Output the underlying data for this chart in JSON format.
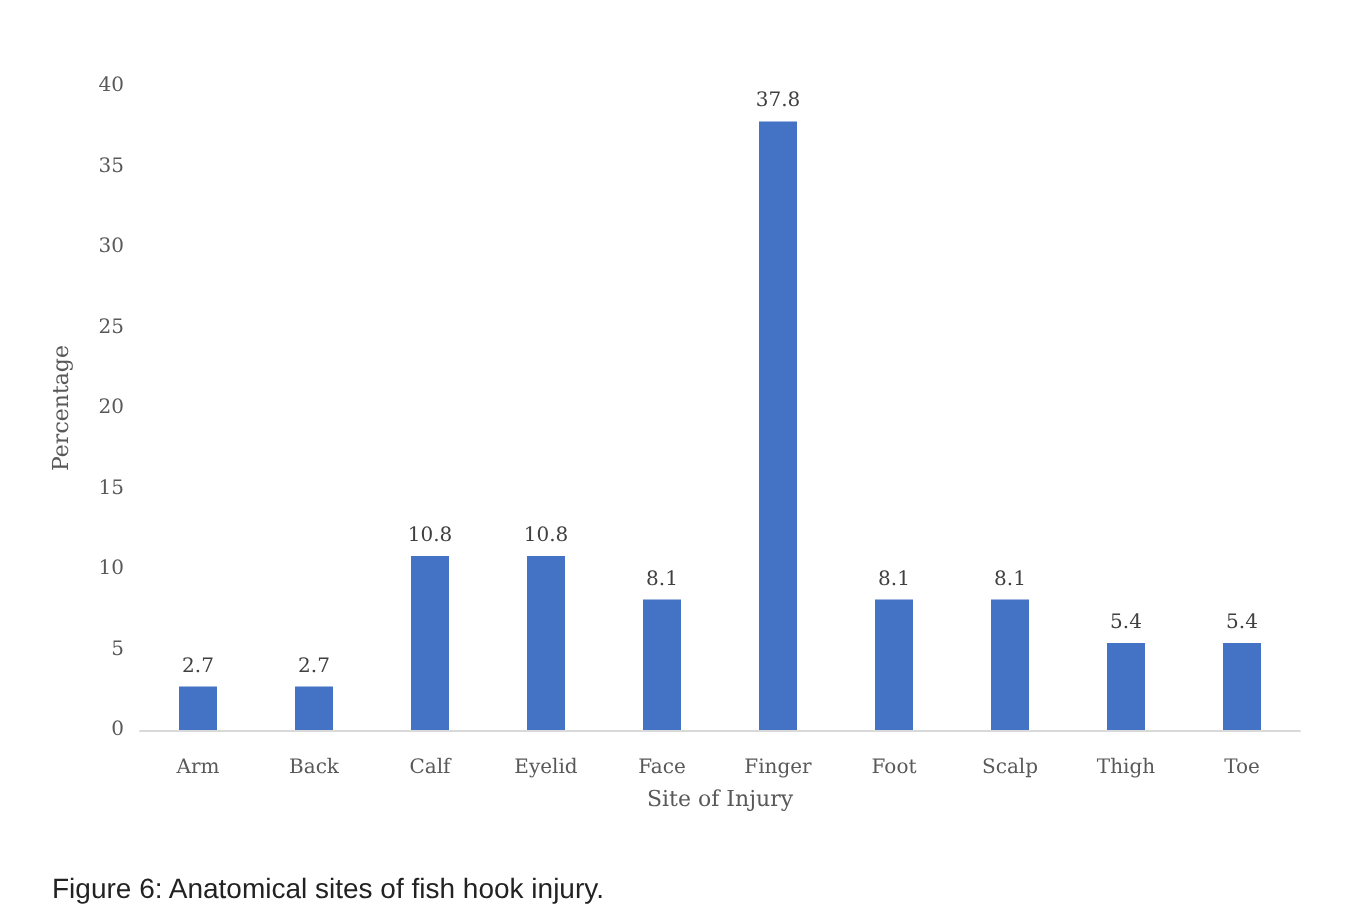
{
  "chart_data": {
    "type": "bar",
    "xlabel": "Site of Injury",
    "ylabel": "Percentage",
    "categories": [
      "Arm",
      "Back",
      "Calf",
      "Eyelid",
      "Face",
      "Finger",
      "Foot",
      "Scalp",
      "Thigh",
      "Toe"
    ],
    "values": [
      2.7,
      2.7,
      10.8,
      10.8,
      8.1,
      37.8,
      8.1,
      8.1,
      5.4,
      5.4
    ],
    "color": "#4472c4",
    "ylim": [
      0,
      40
    ],
    "yticks": [
      0,
      5,
      10,
      15,
      20,
      25,
      30,
      35,
      40
    ],
    "grid": false,
    "data_labels": true,
    "annotations": [
      "Figure 6: Anatomical sites of fish hook injury."
    ]
  }
}
